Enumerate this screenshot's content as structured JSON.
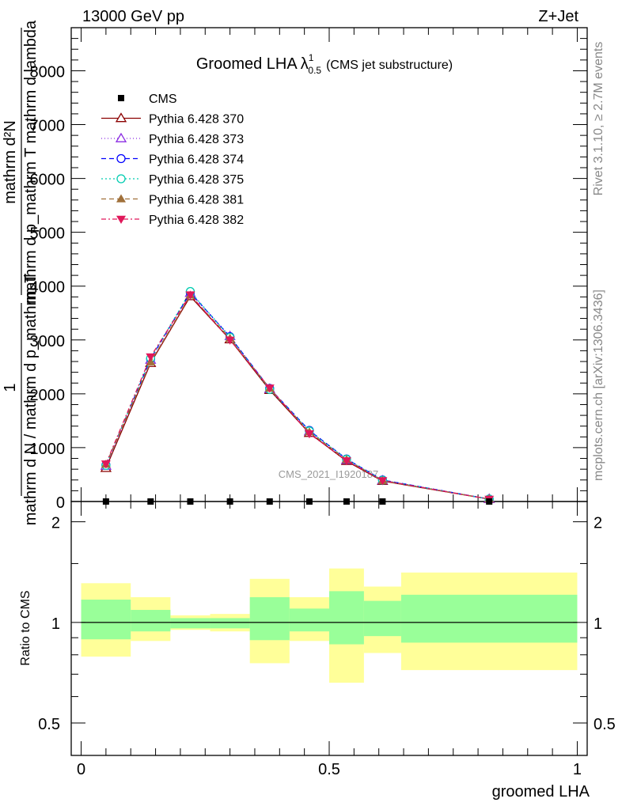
{
  "header": {
    "left": "13000 GeV pp",
    "right": "Z+Jet"
  },
  "side": {
    "rivet": "Rivet 3.1.10, ≥ 2.7M events",
    "mcplots": "mcplots.cern.ch [arXiv:1306.3436]"
  },
  "watermark": "CMS_2021_I1920187",
  "colors": {
    "band_outer": "#ffff99",
    "band_inner": "#99ff99",
    "cms": "#000000"
  },
  "chart_data": [
    {
      "type": "line",
      "title": "Groomed LHA",
      "title_symbol": "λ",
      "title_sup": "1",
      "title_sub": "0.5",
      "title_suffix": "(CMS jet substructure)",
      "ylabel": {
        "numerator": "mathrm d²N",
        "denominator": "mathrm d p_mathrm T mathrm d lambda",
        "prefactor_num": "1",
        "prefactor_den": "mathrm d N / mathrm d p_mathrm T"
      },
      "xlim": [
        -0.02,
        1.02
      ],
      "ylim": [
        0,
        8800
      ],
      "y_ticks": [
        0,
        1000,
        2000,
        3000,
        4000,
        5000,
        6000,
        7000,
        8000
      ],
      "y_tick_labels": [
        "0",
        "1000",
        "2000",
        "3000",
        "4000",
        "5000",
        "6000",
        "7000",
        "8000"
      ],
      "bins": [
        [
          0.0,
          0.1
        ],
        [
          0.1,
          0.18
        ],
        [
          0.18,
          0.26
        ],
        [
          0.26,
          0.34
        ],
        [
          0.34,
          0.42
        ],
        [
          0.42,
          0.5
        ],
        [
          0.5,
          0.57
        ],
        [
          0.57,
          0.645
        ],
        [
          0.645,
          1.0
        ]
      ],
      "x": [
        0.05,
        0.14,
        0.22,
        0.3,
        0.38,
        0.46,
        0.535,
        0.6075,
        0.8225
      ],
      "cms": [
        0,
        0,
        0,
        0,
        0,
        0,
        0,
        0,
        0
      ],
      "series": [
        {
          "name": "Pythia 6.428 370",
          "color": "#8b0000",
          "dash": "",
          "marker": "triangle-open",
          "values": [
            620,
            2570,
            3810,
            3010,
            2070,
            1270,
            750,
            380,
            45
          ]
        },
        {
          "name": "Pythia 6.428 373",
          "color": "#8a2be2",
          "dash": "1,3",
          "marker": "triangle-open",
          "values": [
            660,
            2630,
            3870,
            3070,
            2090,
            1300,
            770,
            390,
            45
          ]
        },
        {
          "name": "Pythia 6.428 374",
          "color": "#0000ff",
          "dash": "6,4",
          "marker": "circle-open",
          "values": [
            680,
            2650,
            3880,
            3060,
            2100,
            1320,
            790,
            400,
            45
          ]
        },
        {
          "name": "Pythia 6.428 375",
          "color": "#00ccb0",
          "dash": "2,3",
          "marker": "circle-open",
          "values": [
            670,
            2660,
            3900,
            3050,
            2080,
            1310,
            785,
            395,
            45
          ]
        },
        {
          "name": "Pythia 6.428 381",
          "color": "#a0703a",
          "dash": "6,4",
          "marker": "triangle-filled",
          "values": [
            690,
            2590,
            3830,
            3030,
            2100,
            1290,
            775,
            385,
            45
          ]
        },
        {
          "name": "Pythia 6.428 382",
          "color": "#e0185a",
          "dash": "6,3,2,3",
          "marker": "triangle-down-filled",
          "values": [
            700,
            2690,
            3840,
            3000,
            2110,
            1260,
            760,
            390,
            45
          ]
        }
      ]
    },
    {
      "type": "area",
      "ylabel": "Ratio to CMS",
      "xlabel": "groomed LHA",
      "log_y": true,
      "ylim": [
        0.4,
        2.3
      ],
      "y_ticks": [
        0.5,
        1,
        2
      ],
      "y_tick_labels": [
        "0.5",
        "1",
        "2"
      ],
      "x_ticks": [
        0,
        0.5,
        1
      ],
      "x_tick_labels": [
        "0",
        "0.5",
        "1"
      ],
      "bins": [
        [
          0.0,
          0.1
        ],
        [
          0.1,
          0.18
        ],
        [
          0.18,
          0.26
        ],
        [
          0.26,
          0.34
        ],
        [
          0.34,
          0.42
        ],
        [
          0.42,
          0.5
        ],
        [
          0.5,
          0.57
        ],
        [
          0.57,
          0.645
        ],
        [
          0.645,
          1.0
        ]
      ],
      "band_outer": [
        [
          0.79,
          1.31
        ],
        [
          0.88,
          1.19
        ],
        [
          0.95,
          1.05
        ],
        [
          0.94,
          1.06
        ],
        [
          0.755,
          1.35
        ],
        [
          0.88,
          1.19
        ],
        [
          0.66,
          1.45
        ],
        [
          0.81,
          1.28
        ],
        [
          0.72,
          1.41
        ]
      ],
      "band_inner": [
        [
          0.89,
          1.17
        ],
        [
          0.94,
          1.09
        ],
        [
          0.96,
          1.03
        ],
        [
          0.96,
          1.03
        ],
        [
          0.885,
          1.19
        ],
        [
          0.94,
          1.1
        ],
        [
          0.86,
          1.24
        ],
        [
          0.91,
          1.16
        ],
        [
          0.87,
          1.21
        ]
      ]
    }
  ]
}
